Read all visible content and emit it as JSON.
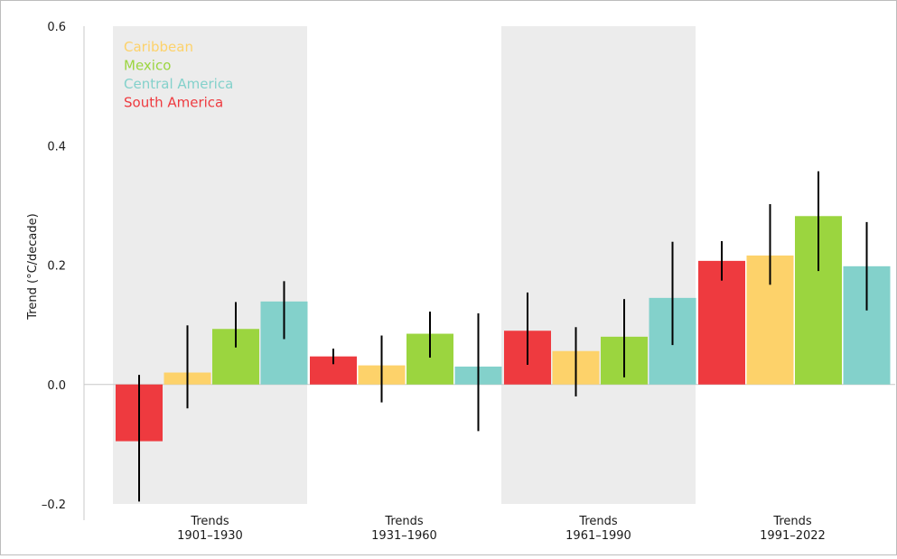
{
  "chart_data": {
    "type": "bar",
    "title": "",
    "ylabel": "Trend (°C/decade)",
    "xlabel": "",
    "ylim": [
      -0.2,
      0.6
    ],
    "yticks": [
      "–0.2",
      "0.0",
      "0.2",
      "0.4",
      "0.6"
    ],
    "categories": [
      "Trends\n1901–1930",
      "Trends\n1931–1960",
      "Trends\n1961–1990",
      "Trends\n1991–2022"
    ],
    "category_lines": [
      [
        "Trends",
        "1901–1930"
      ],
      [
        "Trends",
        "1931–1960"
      ],
      [
        "Trends",
        "1961–1990"
      ],
      [
        "Trends",
        "1991–2022"
      ]
    ],
    "shaded_categories": [
      0,
      2
    ],
    "legend_placement": "top-left",
    "legend_order": [
      "Caribbean",
      "Mexico",
      "Central America",
      "South America"
    ],
    "bar_order": [
      "South America",
      "Caribbean",
      "Mexico",
      "Central America"
    ],
    "series": [
      {
        "name": "South America",
        "color": "#ee3a3f",
        "values": [
          -0.095,
          0.047,
          0.09,
          0.207
        ],
        "error_low": [
          -0.196,
          0.034,
          0.033,
          0.174
        ],
        "error_high": [
          0.016,
          0.06,
          0.154,
          0.24
        ]
      },
      {
        "name": "Caribbean",
        "color": "#fdd26a",
        "values": [
          0.02,
          0.032,
          0.056,
          0.216
        ],
        "error_low": [
          -0.04,
          -0.03,
          -0.02,
          0.167
        ],
        "error_high": [
          0.099,
          0.082,
          0.096,
          0.302
        ]
      },
      {
        "name": "Mexico",
        "color": "#9bd53f",
        "values": [
          0.093,
          0.085,
          0.08,
          0.282
        ],
        "error_low": [
          0.062,
          0.045,
          0.012,
          0.19
        ],
        "error_high": [
          0.138,
          0.122,
          0.143,
          0.357
        ]
      },
      {
        "name": "Central America",
        "color": "#83d1cb",
        "values": [
          0.139,
          0.03,
          0.145,
          0.198
        ],
        "error_low": [
          0.076,
          -0.078,
          0.066,
          0.124
        ],
        "error_high": [
          0.173,
          0.119,
          0.239,
          0.272
        ]
      }
    ],
    "colors": {
      "shade": "#ececec",
      "axis": "#c8c8c8",
      "error_bar": "#000000"
    }
  }
}
